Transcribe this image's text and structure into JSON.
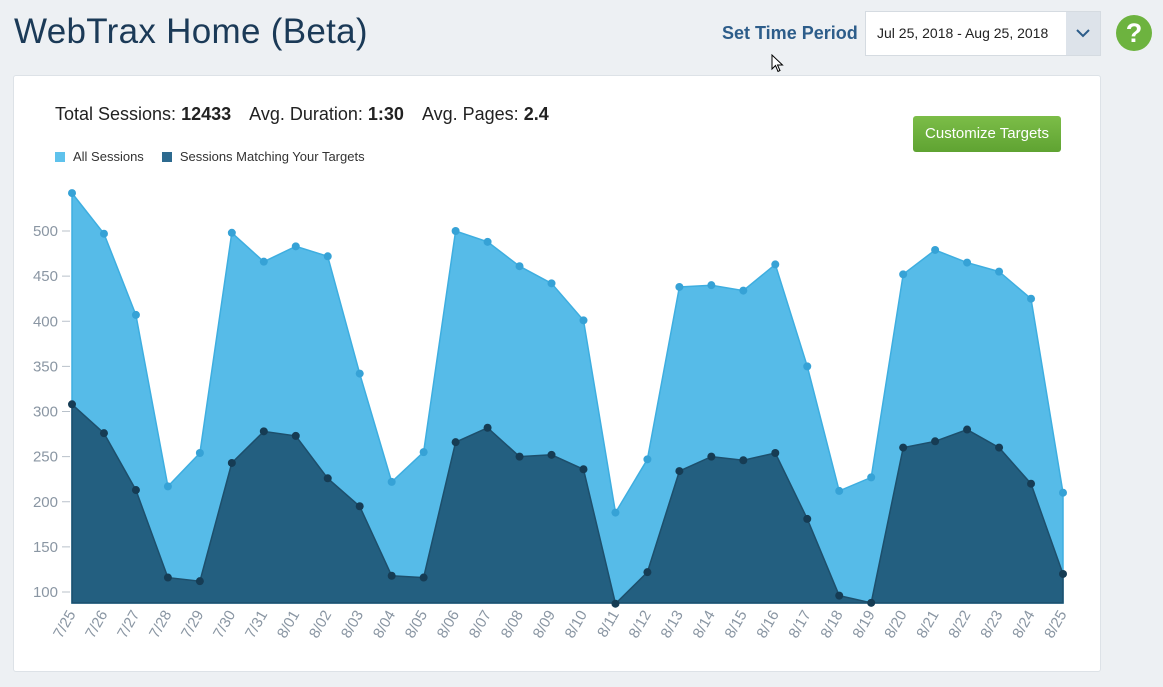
{
  "header": {
    "title": "WebTrax Home (Beta)",
    "period_label": "Set Time Period",
    "date_range": "Jul 25, 2018 - Aug 25, 2018",
    "help_icon": "question-circle-icon"
  },
  "stats": {
    "total_label": "Total Sessions:",
    "total_value": "12433",
    "duration_label": "Avg. Duration:",
    "duration_value": "1:30",
    "pages_label": "Avg. Pages:",
    "pages_value": "2.4"
  },
  "customize_label": "Customize Targets",
  "colors": {
    "all": "#56bbe8",
    "targets": "#235f80",
    "accent": "#6db33f"
  },
  "chart_data": {
    "type": "area",
    "legend_placement": "top-left",
    "categories": [
      "7/25",
      "7/26",
      "7/27",
      "7/28",
      "7/29",
      "7/30",
      "7/31",
      "8/01",
      "8/02",
      "8/03",
      "8/04",
      "8/05",
      "8/06",
      "8/07",
      "8/08",
      "8/09",
      "8/10",
      "8/11",
      "8/12",
      "8/13",
      "8/14",
      "8/15",
      "8/16",
      "8/17",
      "8/18",
      "8/19",
      "8/20",
      "8/21",
      "8/22",
      "8/23",
      "8/24",
      "8/25"
    ],
    "yticks": [
      100,
      150,
      200,
      250,
      300,
      350,
      400,
      450,
      500
    ],
    "ylim": [
      88,
      545
    ],
    "grid": false,
    "series": [
      {
        "name": "All Sessions",
        "values": [
          542,
          497,
          407,
          217,
          254,
          498,
          466,
          483,
          472,
          342,
          222,
          255,
          500,
          488,
          461,
          442,
          401,
          188,
          247,
          438,
          440,
          434,
          463,
          350,
          212,
          227,
          452,
          479,
          465,
          455,
          425,
          210
        ]
      },
      {
        "name": "Sessions Matching Your Targets",
        "values": [
          308,
          276,
          213,
          116,
          112,
          243,
          278,
          273,
          226,
          195,
          118,
          116,
          266,
          282,
          250,
          252,
          236,
          87,
          122,
          234,
          250,
          246,
          254,
          181,
          96,
          88,
          260,
          267,
          280,
          260,
          220,
          120
        ]
      }
    ]
  }
}
